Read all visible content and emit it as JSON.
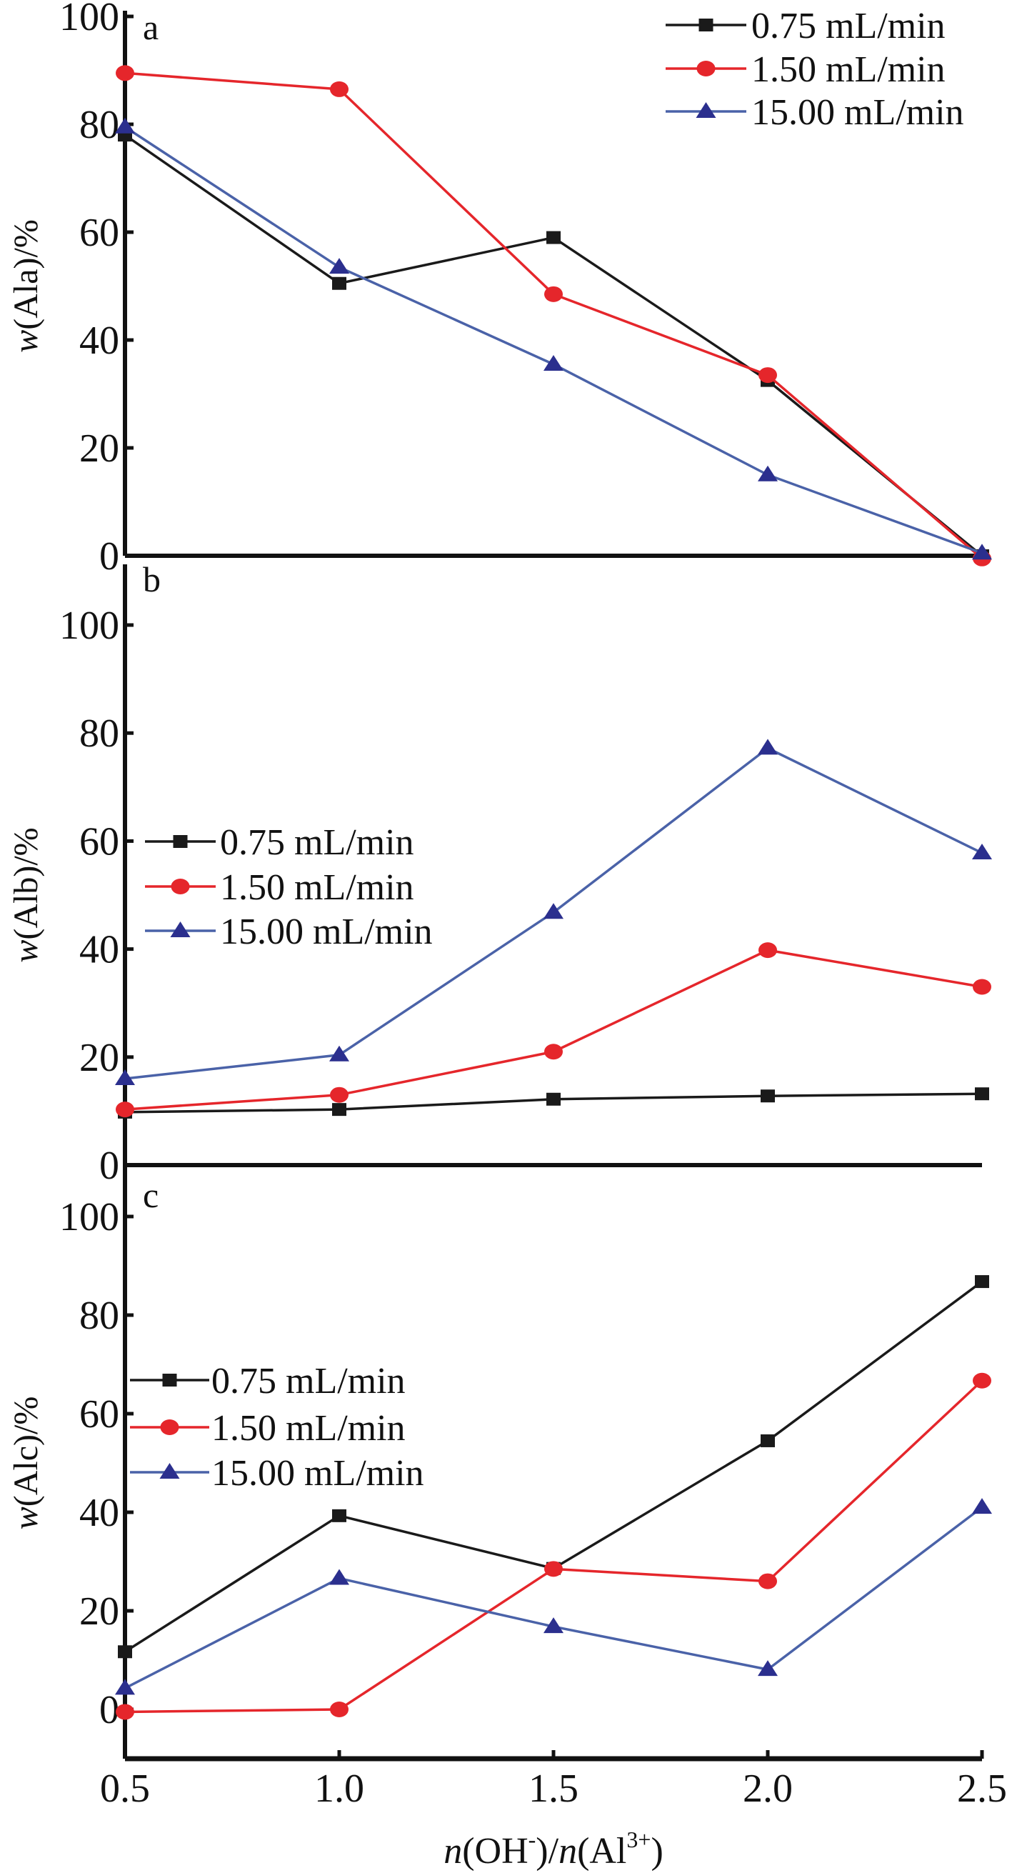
{
  "chart_data": {
    "type": "line",
    "xlabel": {
      "n1": "n",
      "p1": "(OH",
      "sup1": "-",
      "p2": ")/",
      "n2": "n",
      "p3": "(Al",
      "sup2": "3+",
      "p4": ")"
    },
    "x": [
      0.5,
      1.0,
      1.5,
      2.0,
      2.5
    ],
    "x_tick_labels": [
      "0.5",
      "1.0",
      "1.5",
      "2.0",
      "2.5"
    ],
    "xlim": [
      0.5,
      2.5
    ],
    "grid": false,
    "series_styles": [
      {
        "name": "0.75 mL/min",
        "color": "#1a1a1a",
        "marker": "square"
      },
      {
        "name": "1.50 mL/min",
        "color": "#e5262b",
        "marker": "circle"
      },
      {
        "name": "15.00 mL/min",
        "color": "#4a62a8",
        "marker_color": "#2b2f8e",
        "marker": "triangle"
      }
    ],
    "panels": [
      {
        "id": "a",
        "letter": "a",
        "ylabel": {
          "w": "w",
          "rest": "(Ala)/%"
        },
        "ylim": [
          0,
          100
        ],
        "y_ticks": [
          0,
          20,
          40,
          60,
          80,
          100
        ],
        "y_tick_labels": [
          "0",
          "20",
          "40",
          "60",
          "80",
          "100"
        ],
        "legend_position": "top-right",
        "series": [
          {
            "name": "0.75 mL/min",
            "values": [
              78,
              50.5,
              59,
              32.5,
              0
            ]
          },
          {
            "name": "1.50 mL/min",
            "values": [
              89.5,
              86.5,
              48.5,
              33.5,
              -0.5
            ]
          },
          {
            "name": "15.00 mL/min",
            "values": [
              79.5,
              53.5,
              35.5,
              15,
              0.5
            ]
          }
        ]
      },
      {
        "id": "b",
        "letter": "b",
        "ylabel": {
          "w": "w",
          "rest": "(Alb)/%"
        },
        "ylim": [
          0,
          100
        ],
        "y_ticks": [
          0,
          20,
          40,
          60,
          80,
          100
        ],
        "y_tick_labels": [
          "0",
          "20",
          "40",
          "60",
          "80",
          "100"
        ],
        "legend_position": "center-left",
        "series": [
          {
            "name": "0.75 mL/min",
            "values": [
              9.8,
              10.3,
              12.2,
              12.8,
              13.2
            ]
          },
          {
            "name": "1.50 mL/min",
            "values": [
              10.3,
              13,
              21,
              39.8,
              33
            ]
          },
          {
            "name": "15.00 mL/min",
            "values": [
              16,
              20.4,
              46.8,
              77.2,
              57.8
            ]
          }
        ]
      },
      {
        "id": "c",
        "letter": "c",
        "ylabel": {
          "w": "w",
          "rest": "(Alc)/%"
        },
        "ylim": [
          -10,
          100
        ],
        "y_ticks": [
          0,
          20,
          40,
          60,
          80,
          100
        ],
        "y_tick_labels": [
          "0",
          "20",
          "40",
          "60",
          "80",
          "100"
        ],
        "legend_position": "center-left",
        "series": [
          {
            "name": "0.75 mL/min",
            "values": [
              11.7,
              39.3,
              28.6,
              54.5,
              86.8
            ]
          },
          {
            "name": "1.50 mL/min",
            "values": [
              -0.5,
              0,
              28.5,
              26,
              66.7
            ]
          },
          {
            "name": "15.00 mL/min",
            "values": [
              4.3,
              26.6,
              16.8,
              8.1,
              41
            ]
          }
        ]
      }
    ]
  }
}
